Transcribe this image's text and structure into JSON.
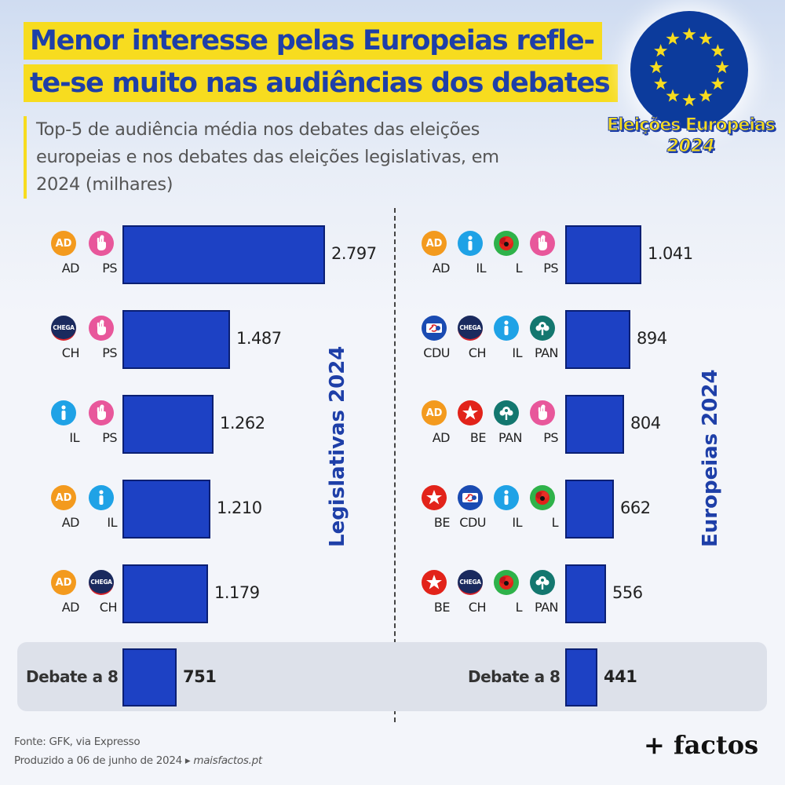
{
  "title": {
    "line1": "Menor interesse pelas Europeias refle-",
    "line2": "te-se muito nas audiências dos debates"
  },
  "subtitle": "Top-5 de audiência média nos debates das eleições europeias e nos debates das eleições legislativas, em 2024 (milhares)",
  "logo": {
    "line1": "Eleições Europeias",
    "line2": "2024"
  },
  "colors": {
    "bar": "#1d41c4",
    "title_bg": "#f7dc1f",
    "title_text": "#1e3fa8",
    "AD": "#f39a1e",
    "PS": "#e8579b",
    "IL": "#1fa2e6",
    "CH": "#1a2a5e",
    "L": "#2fb24a",
    "CDU": "#1a4bb2",
    "PAN": "#13776f",
    "BE": "#e2231a"
  },
  "chart_data": [
    {
      "type": "bar",
      "orientation": "horizontal",
      "panel_label": "Legislativas 2024",
      "xlim": [
        0,
        2797
      ],
      "categories": [
        "AD-PS",
        "CH-PS",
        "IL-PS",
        "AD-IL",
        "AD-CH"
      ],
      "rows": [
        {
          "parties": [
            "AD",
            "PS"
          ],
          "value": 2797,
          "label": "2.797"
        },
        {
          "parties": [
            "CH",
            "PS"
          ],
          "value": 1487,
          "label": "1.487"
        },
        {
          "parties": [
            "IL",
            "PS"
          ],
          "value": 1262,
          "label": "1.262"
        },
        {
          "parties": [
            "AD",
            "IL"
          ],
          "value": 1210,
          "label": "1.210"
        },
        {
          "parties": [
            "AD",
            "CH"
          ],
          "value": 1179,
          "label": "1.179"
        }
      ],
      "summary": {
        "label": "Debate a 8",
        "value": 751,
        "value_label": "751"
      }
    },
    {
      "type": "bar",
      "orientation": "horizontal",
      "panel_label": "Europeias 2024",
      "xlim": [
        0,
        1041
      ],
      "categories": [
        "AD-IL-L-PS",
        "CDU-CH-IL-PAN",
        "AD-BE-PAN-PS",
        "BE-CDU-IL-L",
        "BE-CH-L-PAN"
      ],
      "rows": [
        {
          "parties": [
            "AD",
            "IL",
            "L",
            "PS"
          ],
          "value": 1041,
          "label": "1.041"
        },
        {
          "parties": [
            "CDU",
            "CH",
            "IL",
            "PAN"
          ],
          "value": 894,
          "label": "894"
        },
        {
          "parties": [
            "AD",
            "BE",
            "PAN",
            "PS"
          ],
          "value": 804,
          "label": "804"
        },
        {
          "parties": [
            "BE",
            "CDU",
            "IL",
            "L"
          ],
          "value": 662,
          "label": "662"
        },
        {
          "parties": [
            "BE",
            "CH",
            "L",
            "PAN"
          ],
          "value": 556,
          "label": "556"
        }
      ],
      "summary": {
        "label": "Debate a 8",
        "value": 441,
        "value_label": "441"
      }
    }
  ],
  "party_icons": {
    "AD": "AD",
    "PS": "fist-rose-icon",
    "IL": "i-icon",
    "CH": "CHEGA",
    "L": "poppy-icon",
    "CDU": "hammer-sickle-icon",
    "PAN": "tree-icon",
    "BE": "star-person-icon"
  },
  "footer": {
    "source": "Fonte: GFK, via Expresso",
    "produced": "Produzido a 06 de junho de 2024 ▸ ",
    "site": "maisfactos.pt",
    "brand": "+ factos"
  }
}
